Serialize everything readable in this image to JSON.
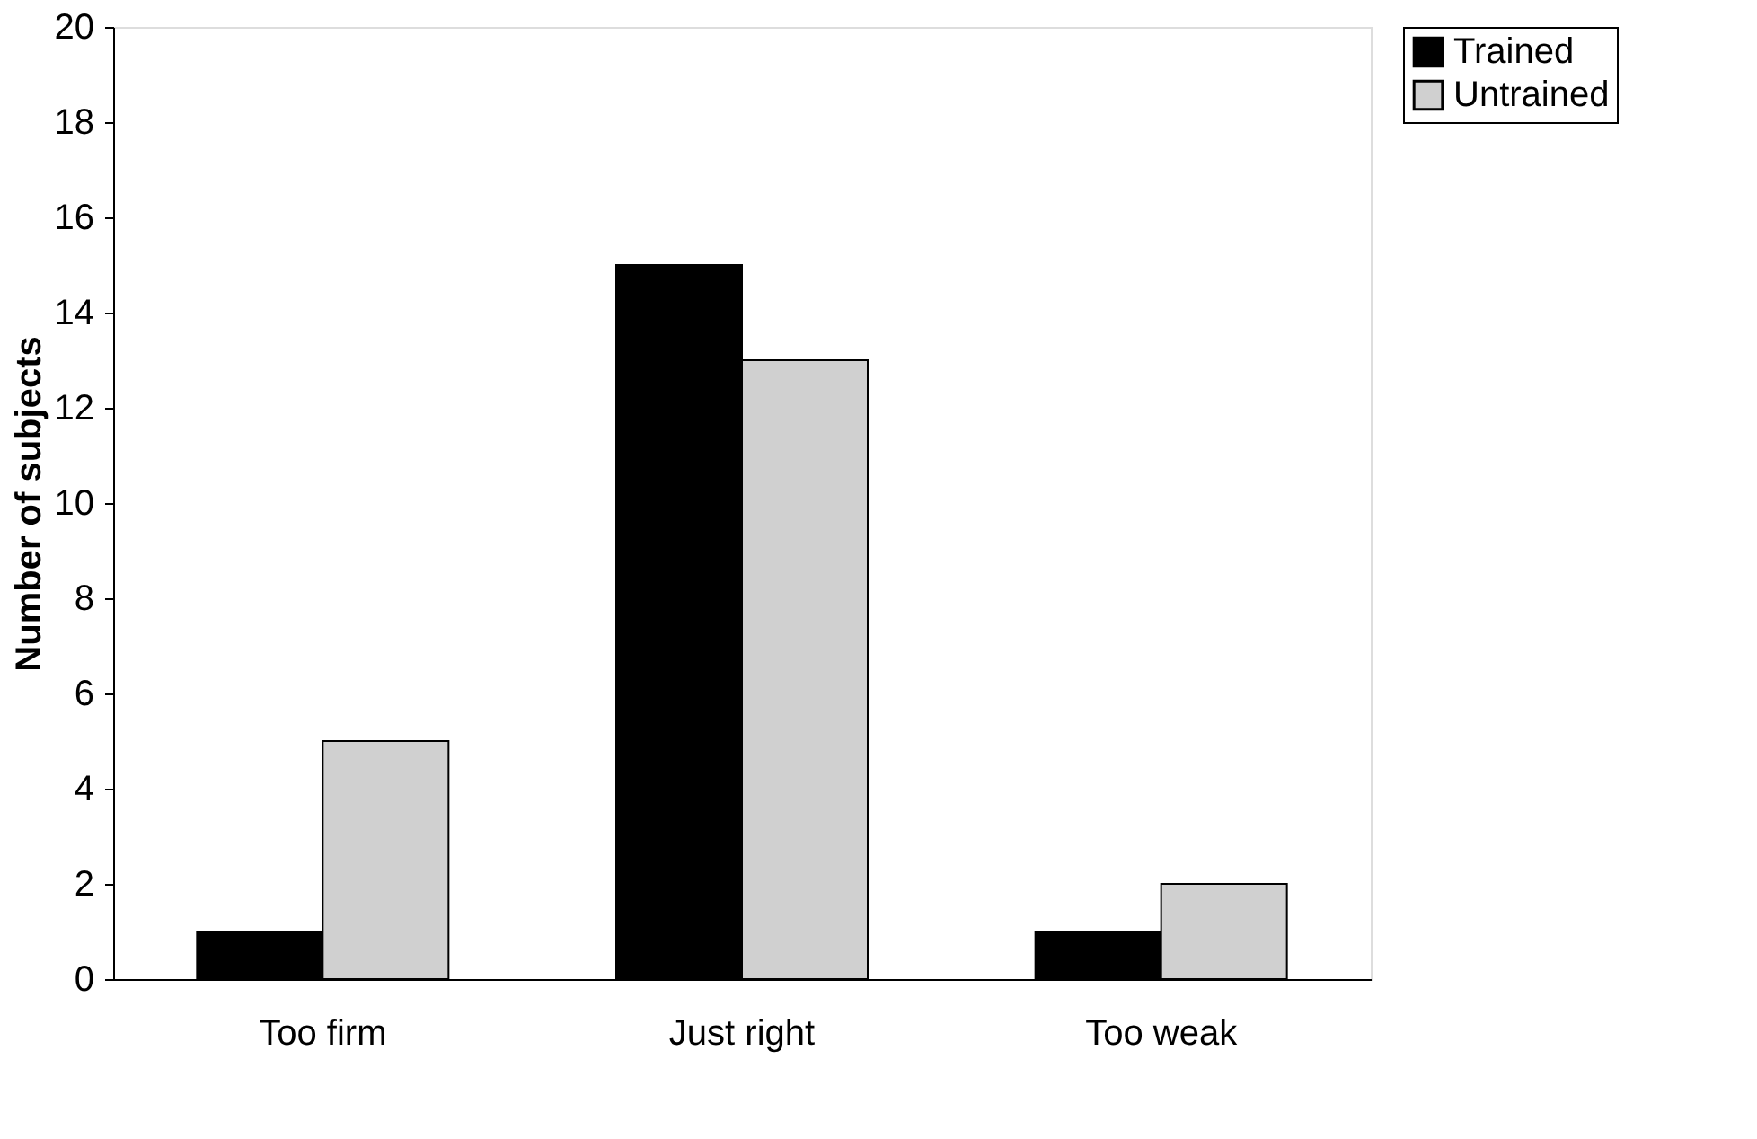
{
  "chart_data": {
    "type": "bar",
    "ylabel": "Number of subjects",
    "categories": [
      "Too firm",
      "Just right",
      "Too weak"
    ],
    "series": [
      {
        "name": "Trained",
        "color": "#000000",
        "values": [
          1,
          15,
          1
        ]
      },
      {
        "name": "Untrained",
        "color": "#d0d0d0",
        "values": [
          5,
          13,
          2
        ]
      }
    ],
    "ylim": [
      0,
      20
    ],
    "yticks": [
      0,
      2,
      4,
      6,
      8,
      10,
      12,
      14,
      16,
      18,
      20
    ],
    "grid": false,
    "legend": "right"
  }
}
